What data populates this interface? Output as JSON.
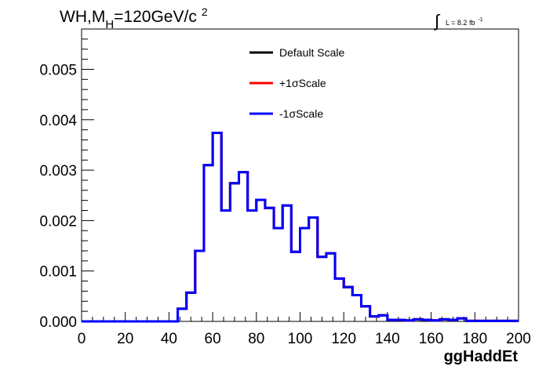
{
  "title": {
    "prefix": "WH,M",
    "subscript": "H",
    "main": "=120GeV/c",
    "superscript": "2"
  },
  "lumi": {
    "integral": "∫",
    "text": "L = 8.2 fb",
    "superscript": "-1"
  },
  "chart_data": {
    "type": "line",
    "xlabel": "ggHaddEt",
    "ylabel": "",
    "xlim": [
      0,
      200
    ],
    "ylim": [
      0,
      0.0058
    ],
    "xticks": [
      0,
      20,
      40,
      60,
      80,
      100,
      120,
      140,
      160,
      180,
      200
    ],
    "xtick_labels": [
      "0",
      "20",
      "40",
      "60",
      "80",
      "100",
      "120",
      "140",
      "160",
      "180",
      "200"
    ],
    "yticks": [
      0,
      0.001,
      0.002,
      0.003,
      0.004,
      0.005
    ],
    "ytick_labels": [
      "0.000",
      "0.001",
      "0.002",
      "0.003",
      "0.004",
      "0.005"
    ],
    "bin_width": 4,
    "bin_edges_start": 0,
    "legend_position": "top-center",
    "series": [
      {
        "name": "Default Scale",
        "color": "#000000",
        "values": [
          0,
          0,
          0,
          0,
          0,
          0,
          0,
          0,
          0,
          0,
          0,
          0.00025,
          0.00057,
          0.0014,
          0.0031,
          0.00374,
          0.0022,
          0.00274,
          0.00296,
          0.0022,
          0.00241,
          0.00225,
          0.00185,
          0.0023,
          0.00138,
          0.00185,
          0.00206,
          0.00128,
          0.00135,
          0.00085,
          0.00068,
          0.00052,
          0.0003,
          0.0001,
          0.00012,
          3e-05,
          3e-05,
          2e-05,
          4e-05,
          3e-05,
          2e-05,
          4e-05,
          3e-05,
          6e-05,
          1e-05,
          1e-05,
          1e-05,
          1e-05,
          1e-05,
          1e-05
        ]
      },
      {
        "name": "+1σScale",
        "color": "#ff0000",
        "values": [
          0,
          0,
          0,
          0,
          0,
          0,
          0,
          0,
          0,
          0,
          0,
          0.00025,
          0.00057,
          0.0014,
          0.0031,
          0.00374,
          0.0022,
          0.00274,
          0.00296,
          0.0022,
          0.00241,
          0.00225,
          0.00185,
          0.0023,
          0.00138,
          0.00185,
          0.00206,
          0.00128,
          0.00135,
          0.00085,
          0.00068,
          0.00052,
          0.0003,
          0.0001,
          0.00012,
          3e-05,
          3e-05,
          2e-05,
          4e-05,
          3e-05,
          2e-05,
          4e-05,
          3e-05,
          6e-05,
          1e-05,
          1e-05,
          1e-05,
          1e-05,
          1e-05,
          1e-05
        ]
      },
      {
        "name": "-1σScale",
        "color": "#0000ff",
        "values": [
          0,
          0,
          0,
          0,
          0,
          0,
          0,
          0,
          0,
          0,
          0,
          0.00025,
          0.00057,
          0.0014,
          0.0031,
          0.00374,
          0.0022,
          0.00274,
          0.00296,
          0.0022,
          0.00241,
          0.00225,
          0.00185,
          0.0023,
          0.00138,
          0.00185,
          0.00206,
          0.00128,
          0.00135,
          0.00085,
          0.00068,
          0.00052,
          0.0003,
          0.0001,
          0.00012,
          3e-05,
          3e-05,
          2e-05,
          4e-05,
          3e-05,
          2e-05,
          4e-05,
          3e-05,
          6e-05,
          1e-05,
          1e-05,
          1e-05,
          1e-05,
          1e-05,
          1e-05
        ]
      }
    ]
  }
}
